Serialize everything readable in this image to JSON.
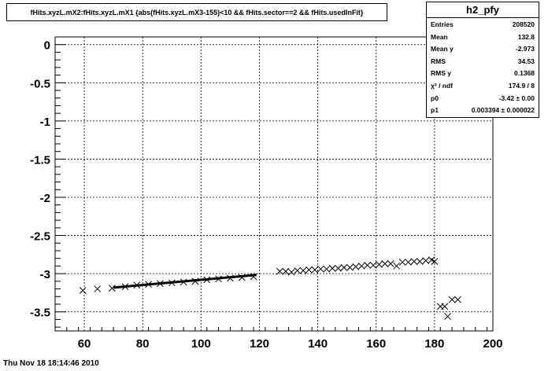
{
  "title": "fHits.xyzL.mX2:fHits.xyzL.mX1  {abs(fHits.xyzL.mX3-155)<10 && fHits.sector==2  && fHits.usedInFit}",
  "stats": {
    "name": "h2_pfy",
    "rows": [
      {
        "label": "Entries",
        "value": "208520"
      },
      {
        "label": "Mean",
        "value": "132.8"
      },
      {
        "label": "Mean y",
        "value": "-2.973"
      },
      {
        "label": "RMS",
        "value": "34.53"
      },
      {
        "label": "RMS y",
        "value": "0.1368"
      },
      {
        "label": "χ² / ndf",
        "value": "174.9 / 8"
      },
      {
        "label": "p0",
        "value": "-3.42 ± 0.00"
      },
      {
        "label": "p1",
        "value": "0.003394 ± 0.000022"
      }
    ]
  },
  "datestamp": "Thu Nov 18 18:14:46 2010",
  "chart_data": {
    "type": "scatter",
    "marker": "x",
    "xlim": [
      50,
      200
    ],
    "ylim": [
      -3.75,
      0.1
    ],
    "xticks": [
      60,
      80,
      100,
      120,
      140,
      160,
      180,
      200
    ],
    "yticks": [
      0,
      -0.5,
      -1,
      -1.5,
      -2,
      -2.5,
      -3,
      -3.5
    ],
    "ytick_labels": [
      "0",
      "-0.5",
      "-1",
      "-1.5",
      "-2",
      "-2.5",
      "-3",
      "-3.5"
    ],
    "grid": true,
    "stats_placement": "top-right",
    "fit_line": {
      "x_start": 70,
      "x_end": 119,
      "p0": -3.42,
      "p1": 0.003394
    },
    "series": [
      {
        "x": [
          59.5,
          64.5,
          69.5,
          74,
          78,
          82,
          86,
          90,
          94,
          98,
          102,
          106,
          110,
          114,
          118,
          127,
          129,
          131,
          133,
          135,
          137,
          139,
          141,
          143,
          145,
          147,
          149,
          151,
          153,
          155,
          157,
          159,
          161,
          163,
          165,
          167,
          169,
          171,
          173,
          175,
          177,
          179,
          180,
          182,
          183.5,
          184.5,
          186,
          188
        ],
        "y": [
          -3.22,
          -3.2,
          -3.19,
          -3.17,
          -3.15,
          -3.14,
          -3.13,
          -3.12,
          -3.11,
          -3.1,
          -3.08,
          -3.07,
          -3.06,
          -3.05,
          -3.04,
          -2.97,
          -2.97,
          -2.98,
          -2.96,
          -2.96,
          -2.95,
          -2.95,
          -2.94,
          -2.94,
          -2.93,
          -2.93,
          -2.92,
          -2.92,
          -2.91,
          -2.9,
          -2.89,
          -2.89,
          -2.88,
          -2.87,
          -2.87,
          -2.9,
          -2.85,
          -2.85,
          -2.84,
          -2.84,
          -2.83,
          -2.82,
          -2.84,
          -3.43,
          -3.43,
          -3.56,
          -3.34,
          -3.34
        ]
      }
    ]
  }
}
